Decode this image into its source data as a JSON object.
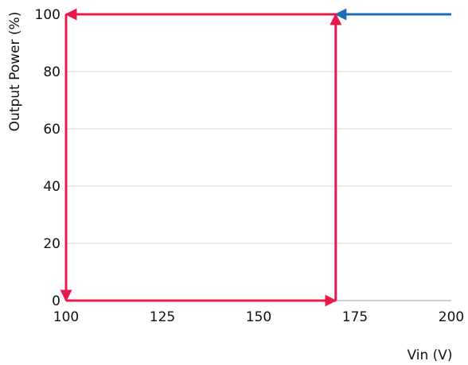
{
  "chart_data": {
    "type": "line",
    "title": "",
    "xlabel": "Vin (V)",
    "ylabel": "Output Power (%)",
    "xlim": [
      100,
      200
    ],
    "ylim": [
      0,
      100
    ],
    "x_ticks": [
      "100",
      "125",
      "150",
      "175",
      "200"
    ],
    "y_ticks": [
      "0",
      "20",
      "40",
      "60",
      "80",
      "100"
    ],
    "grid": "horizontal",
    "legend": "none",
    "series": [
      {
        "color": "#1f6fb4",
        "arrow": "end",
        "points": [
          [
            200,
            100
          ],
          [
            170,
            100
          ]
        ]
      },
      {
        "color": "#e8194b",
        "arrow": "each-segment",
        "points": [
          [
            170,
            100
          ],
          [
            100,
            100
          ],
          [
            100,
            0
          ],
          [
            170,
            0
          ],
          [
            170,
            100
          ]
        ]
      }
    ]
  }
}
